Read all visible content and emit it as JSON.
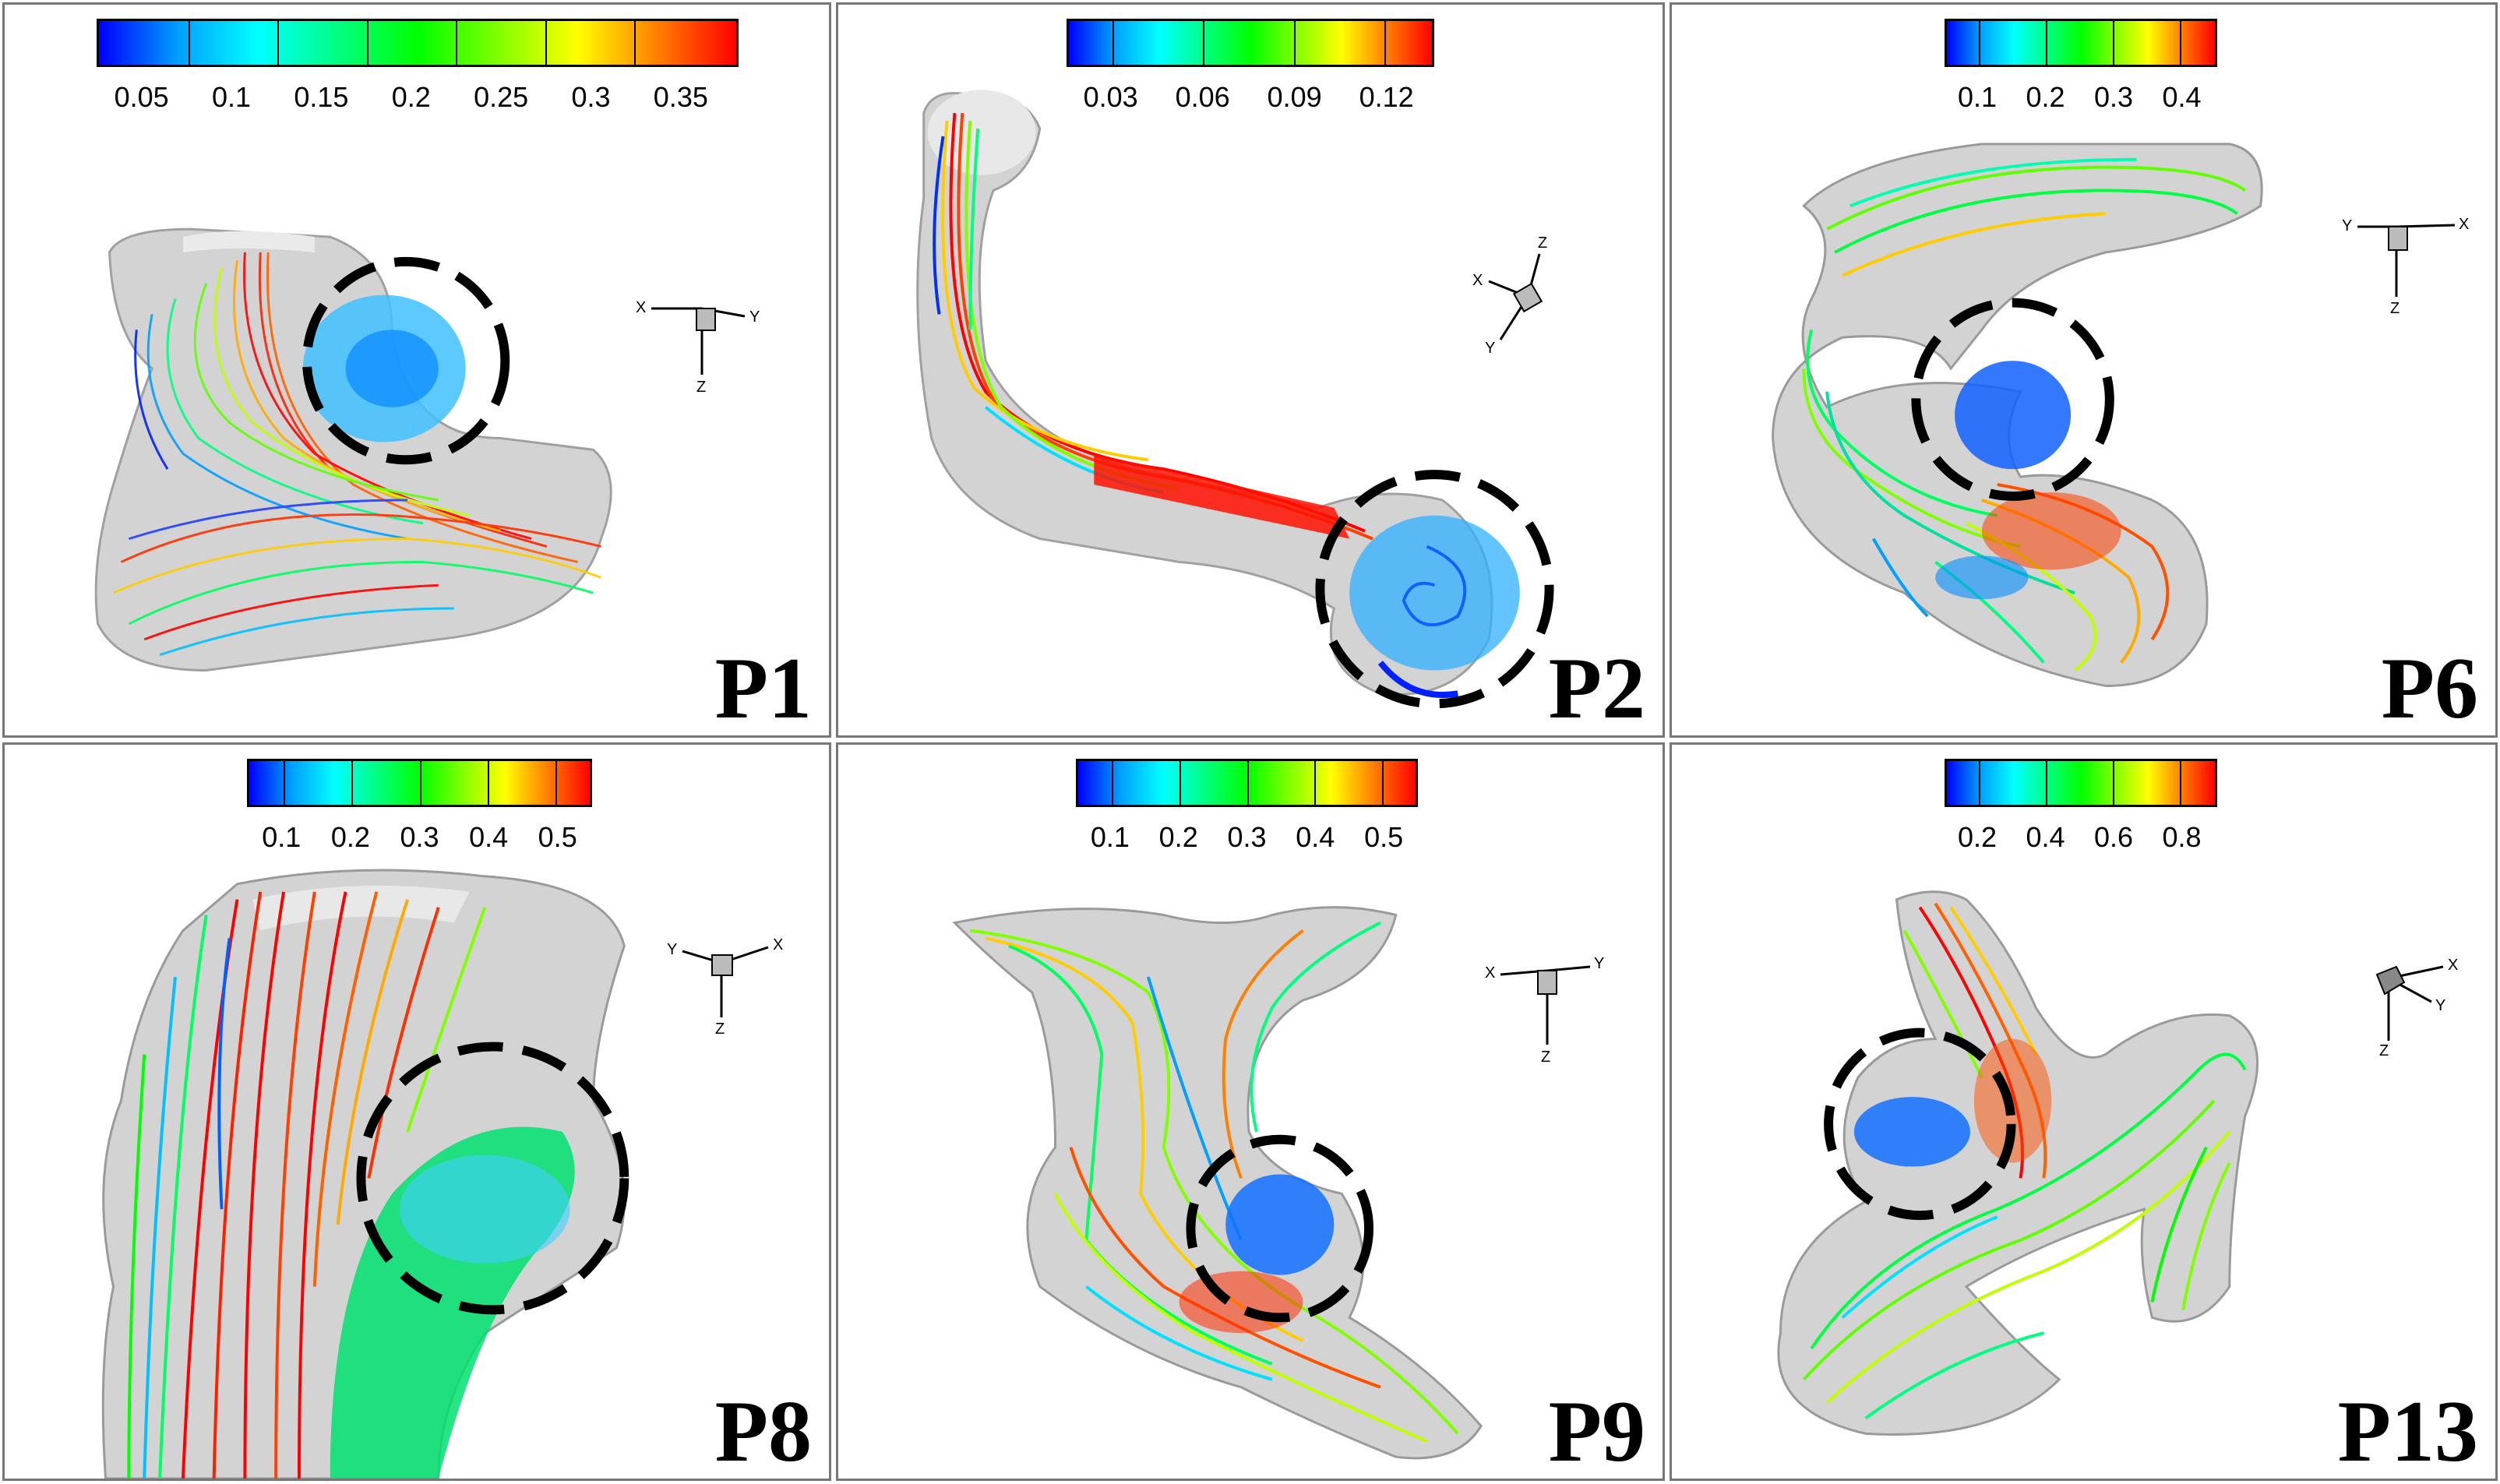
{
  "panels": [
    {
      "id": "P1",
      "label": "P1",
      "colorbar": {
        "ticks": [
          "0.05",
          "0.1",
          "0.15",
          "0.2",
          "0.25",
          "0.3",
          "0.35"
        ]
      },
      "axes": {
        "x": "X",
        "y": "Y",
        "z": "Z"
      }
    },
    {
      "id": "P2",
      "label": "P2",
      "colorbar": {
        "ticks": [
          "0.03",
          "0.06",
          "0.09",
          "0.12"
        ]
      },
      "axes": {
        "x": "X",
        "y": "Y",
        "z": "Z"
      }
    },
    {
      "id": "P6",
      "label": "P6",
      "colorbar": {
        "ticks": [
          "0.1",
          "0.2",
          "0.3",
          "0.4"
        ]
      },
      "axes": {
        "x": "X",
        "y": "Y",
        "z": "Z"
      }
    },
    {
      "id": "P8",
      "label": "P8",
      "colorbar": {
        "ticks": [
          "0.1",
          "0.2",
          "0.3",
          "0.4",
          "0.5"
        ]
      },
      "axes": {
        "x": "X",
        "y": "Y",
        "z": "Z"
      }
    },
    {
      "id": "P9",
      "label": "P9",
      "colorbar": {
        "ticks": [
          "0.1",
          "0.2",
          "0.3",
          "0.4",
          "0.5"
        ]
      },
      "axes": {
        "x": "X",
        "y": "Y",
        "z": "Z"
      }
    },
    {
      "id": "P13",
      "label": "P13",
      "colorbar": {
        "ticks": [
          "0.2",
          "0.4",
          "0.6",
          "0.8"
        ]
      },
      "axes": {
        "x": "X",
        "y": "Y",
        "z": "Z"
      }
    }
  ],
  "colors": {
    "colormap": [
      "#0000ff",
      "#00a0ff",
      "#00ffff",
      "#00ff80",
      "#00ff00",
      "#80ff00",
      "#ffff00",
      "#ff8000",
      "#ff0000"
    ],
    "vessel": "#d0d0d0",
    "vessel_edge": "#9a9a9a",
    "circle": "#000000"
  }
}
